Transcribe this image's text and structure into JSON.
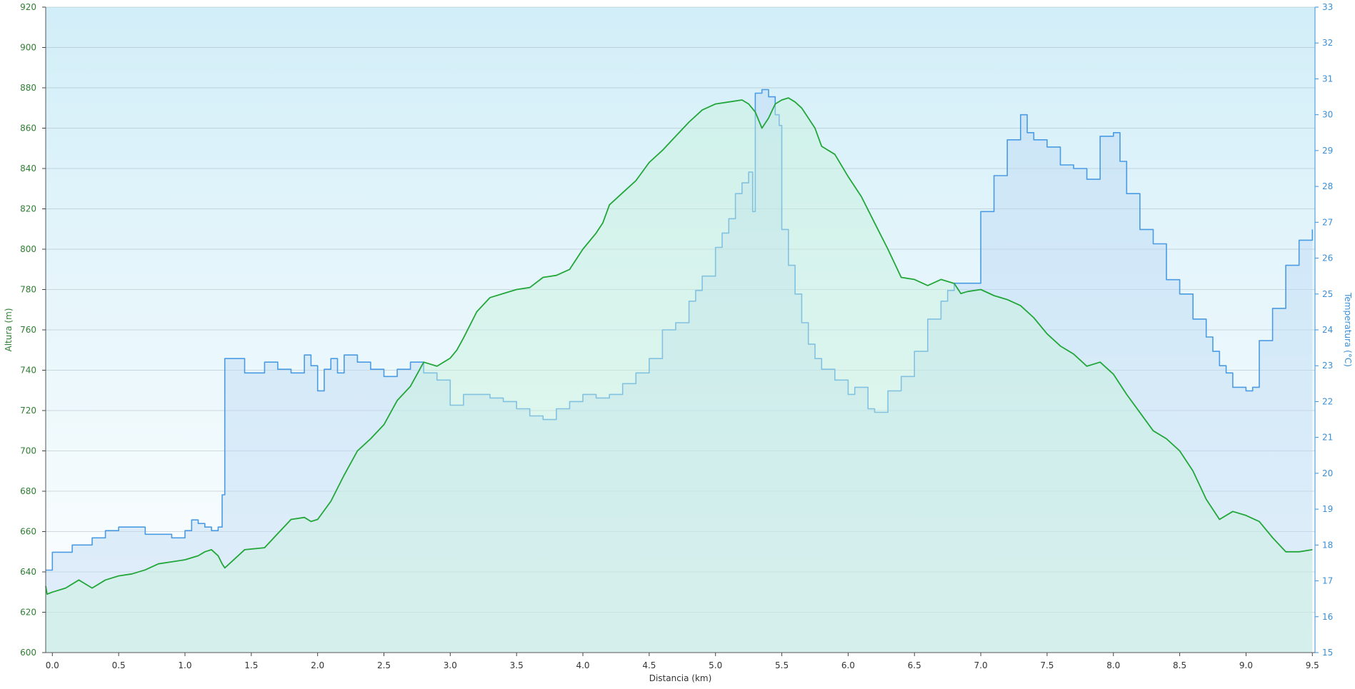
{
  "chart_data": {
    "type": "area",
    "xlabel": "Distancia  (km)",
    "ylabel_left": "Altura (m)",
    "ylabel_right": "Temperatura (°C)",
    "xlim": [
      -0.05,
      9.52
    ],
    "ylim_left": [
      600,
      920
    ],
    "ylim_right": [
      15,
      33
    ],
    "x_ticks": [
      "0.0",
      "0.5",
      "1.0",
      "1.5",
      "2.0",
      "2.5",
      "3.0",
      "3.5",
      "4.0",
      "4.5",
      "5.0",
      "5.5",
      "6.0",
      "6.5",
      "7.0",
      "7.5",
      "8.0",
      "8.5",
      "9.0",
      "9.5"
    ],
    "y_ticks_left": [
      "600",
      "620",
      "640",
      "660",
      "680",
      "700",
      "720",
      "740",
      "760",
      "780",
      "800",
      "820",
      "840",
      "860",
      "880",
      "900",
      "920"
    ],
    "y_ticks_right": [
      "15",
      "16",
      "17",
      "18",
      "19",
      "20",
      "21",
      "22",
      "23",
      "24",
      "25",
      "26",
      "27",
      "28",
      "29",
      "30",
      "31",
      "32",
      "33"
    ],
    "grid": true,
    "colors": {
      "altura_line": "#22a63a",
      "altura_fill": "#c8f2dc",
      "temperatura_line": "#4a9be3",
      "temperatura_fill": "#bcd9f5",
      "background_top": "#d2eef8",
      "background_bottom": "#ffffff",
      "grid": "#9aa8b5"
    },
    "series": [
      {
        "axis": "left",
        "x": [
          -0.05,
          -0.04,
          0.0,
          0.1,
          0.2,
          0.25,
          0.3,
          0.4,
          0.5,
          0.6,
          0.7,
          0.8,
          0.9,
          1.0,
          1.1,
          1.15,
          1.2,
          1.25,
          1.28,
          1.3,
          1.35,
          1.45,
          1.6,
          1.7,
          1.8,
          1.9,
          1.95,
          2.0,
          2.1,
          2.2,
          2.3,
          2.4,
          2.5,
          2.6,
          2.7,
          2.8,
          2.9,
          3.0,
          3.05,
          3.1,
          3.2,
          3.3,
          3.4,
          3.5,
          3.6,
          3.7,
          3.8,
          3.9,
          4.0,
          4.1,
          4.15,
          4.2,
          4.3,
          4.4,
          4.5,
          4.6,
          4.7,
          4.8,
          4.9,
          5.0,
          5.1,
          5.2,
          5.25,
          5.3,
          5.35,
          5.4,
          5.45,
          5.5,
          5.55,
          5.6,
          5.65,
          5.7,
          5.75,
          5.8,
          5.9,
          6.0,
          6.1,
          6.2,
          6.3,
          6.4,
          6.5,
          6.6,
          6.7,
          6.8,
          6.85,
          6.9,
          7.0,
          7.1,
          7.2,
          7.3,
          7.4,
          7.5,
          7.6,
          7.7,
          7.8,
          7.9,
          8.0,
          8.1,
          8.2,
          8.3,
          8.4,
          8.5,
          8.6,
          8.7,
          8.8,
          8.9,
          9.0,
          9.1,
          9.2,
          9.3,
          9.35,
          9.4,
          9.5
        ],
        "values": [
          633,
          629,
          630,
          632,
          636,
          634,
          632,
          636,
          638,
          639,
          641,
          644,
          645,
          646,
          648,
          650,
          651,
          648,
          644,
          642,
          645,
          651,
          652,
          659,
          666,
          667,
          665,
          666,
          675,
          688,
          700,
          706,
          713,
          725,
          732,
          744,
          742,
          746,
          750,
          756,
          769,
          776,
          778,
          780,
          781,
          786,
          787,
          790,
          800,
          808,
          813,
          822,
          828,
          834,
          843,
          849,
          856,
          863,
          869,
          872,
          873,
          874,
          872,
          868,
          860,
          865,
          872,
          874,
          875,
          873,
          870,
          865,
          860,
          851,
          847,
          836,
          826,
          813,
          800,
          786,
          785,
          782,
          785,
          783,
          778,
          779,
          780,
          777,
          775,
          772,
          766,
          758,
          752,
          748,
          742,
          744,
          738,
          728,
          719,
          710,
          706,
          700,
          690,
          676,
          666,
          670,
          668,
          665,
          657,
          650,
          650,
          650,
          651
        ],
        "name": ""
      },
      {
        "axis": "right",
        "x": [
          -0.05,
          -0.04,
          0.0,
          0.1,
          0.15,
          0.2,
          0.3,
          0.35,
          0.4,
          0.45,
          0.5,
          0.55,
          0.6,
          0.7,
          0.8,
          0.9,
          1.0,
          1.05,
          1.1,
          1.15,
          1.2,
          1.25,
          1.28,
          1.3,
          1.35,
          1.45,
          1.6,
          1.7,
          1.8,
          1.9,
          1.95,
          2.0,
          2.05,
          2.1,
          2.15,
          2.2,
          2.3,
          2.4,
          2.5,
          2.6,
          2.7,
          2.8,
          2.9,
          3.0,
          3.05,
          3.1,
          3.2,
          3.3,
          3.4,
          3.5,
          3.6,
          3.7,
          3.8,
          3.9,
          4.0,
          4.1,
          4.2,
          4.3,
          4.4,
          4.5,
          4.6,
          4.7,
          4.8,
          4.85,
          4.9,
          5.0,
          5.05,
          5.1,
          5.15,
          5.2,
          5.25,
          5.28,
          5.3,
          5.35,
          5.4,
          5.45,
          5.48,
          5.5,
          5.55,
          5.6,
          5.65,
          5.7,
          5.75,
          5.8,
          5.9,
          6.0,
          6.05,
          6.1,
          6.15,
          6.2,
          6.3,
          6.4,
          6.5,
          6.6,
          6.7,
          6.75,
          6.8,
          6.9,
          6.95,
          7.0,
          7.1,
          7.2,
          7.3,
          7.35,
          7.4,
          7.5,
          7.6,
          7.7,
          7.8,
          7.9,
          8.0,
          8.05,
          8.1,
          8.2,
          8.3,
          8.4,
          8.5,
          8.6,
          8.7,
          8.75,
          8.8,
          8.85,
          8.9,
          9.0,
          9.05,
          9.1,
          9.2,
          9.3,
          9.4,
          9.5
        ],
        "values": [
          17.3,
          17.3,
          17.8,
          17.8,
          18.0,
          18.0,
          18.2,
          18.2,
          18.4,
          18.4,
          18.5,
          18.5,
          18.5,
          18.3,
          18.3,
          18.2,
          18.4,
          18.7,
          18.6,
          18.5,
          18.4,
          18.5,
          19.4,
          23.2,
          23.2,
          22.8,
          23.1,
          22.9,
          22.8,
          23.3,
          23.0,
          22.3,
          22.9,
          23.2,
          22.8,
          23.3,
          23.1,
          22.9,
          22.7,
          22.9,
          23.1,
          22.8,
          22.6,
          21.9,
          21.9,
          22.2,
          22.2,
          22.1,
          22.0,
          21.8,
          21.6,
          21.5,
          21.8,
          22.0,
          22.2,
          22.1,
          22.2,
          22.5,
          22.8,
          23.2,
          24.0,
          24.2,
          24.8,
          25.1,
          25.5,
          26.3,
          26.7,
          27.1,
          27.8,
          28.1,
          28.4,
          27.3,
          30.6,
          30.7,
          30.5,
          30.0,
          29.7,
          26.8,
          25.8,
          25.0,
          24.2,
          23.6,
          23.2,
          22.9,
          22.6,
          22.2,
          22.4,
          22.4,
          21.8,
          21.7,
          22.3,
          22.7,
          23.4,
          24.3,
          24.8,
          25.1,
          25.3,
          25.3,
          25.3,
          27.3,
          28.3,
          29.3,
          30.0,
          29.5,
          29.3,
          29.1,
          28.6,
          28.5,
          28.2,
          29.4,
          29.5,
          28.7,
          27.8,
          26.8,
          26.4,
          25.4,
          25.0,
          24.3,
          23.8,
          23.4,
          23.0,
          22.8,
          22.4,
          22.3,
          22.4,
          23.7,
          24.6,
          25.8,
          26.5,
          26.8
        ],
        "name": ""
      }
    ]
  }
}
